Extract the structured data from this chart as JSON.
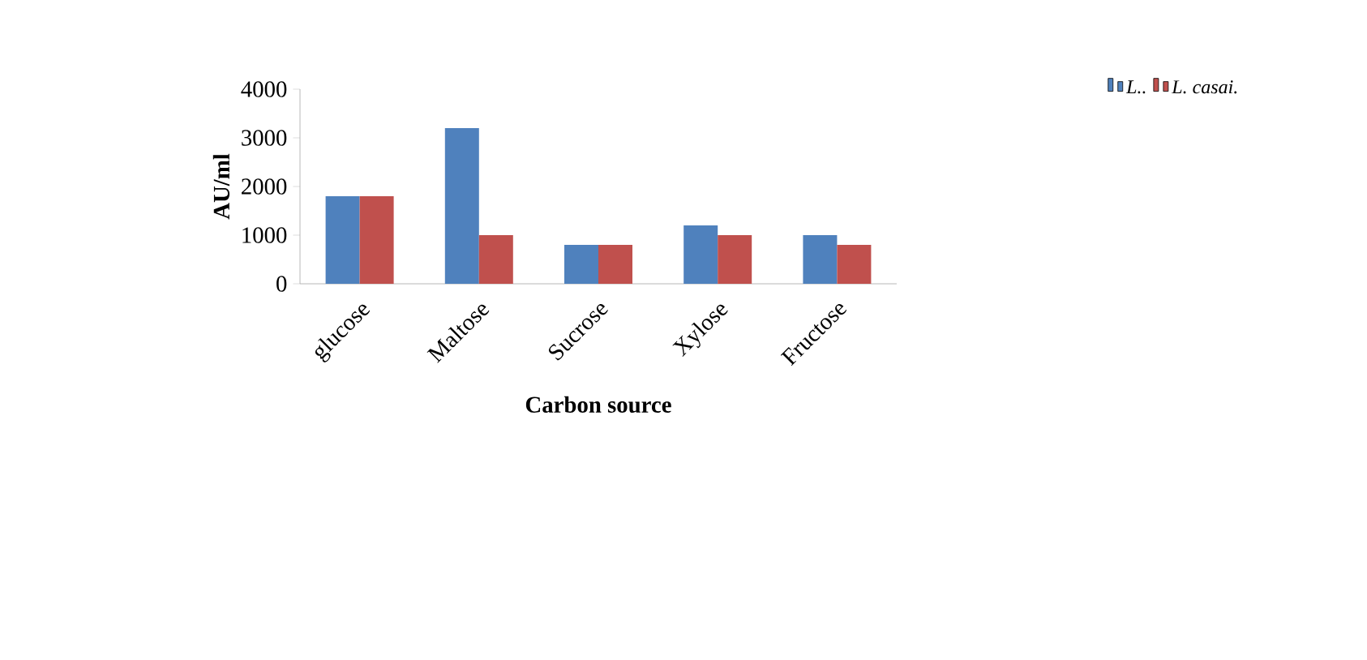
{
  "chart_data": {
    "type": "bar",
    "xlabel": "Carbon source",
    "ylabel": "AU/ml",
    "categories": [
      "glucose",
      "Maltose",
      "Sucrose",
      "Xylose",
      "Fructose"
    ],
    "series": [
      {
        "name": "L..",
        "color": "#4f81bd",
        "values": [
          1800,
          3200,
          800,
          1200,
          1000
        ]
      },
      {
        "name": "L. casai.",
        "color": "#c0504d",
        "values": [
          1800,
          1000,
          800,
          1000,
          800
        ]
      }
    ],
    "ylim": [
      0,
      4000
    ],
    "yticks": [
      0,
      1000,
      2000,
      3000,
      4000
    ],
    "grid": false,
    "legend": "top right"
  }
}
